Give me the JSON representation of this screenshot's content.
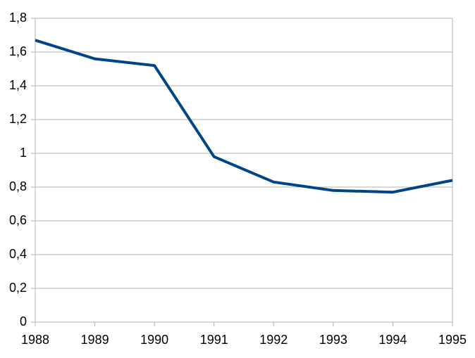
{
  "chart_data": {
    "type": "line",
    "categories": [
      "1988",
      "1989",
      "1990",
      "1991",
      "1992",
      "1993",
      "1994",
      "1995"
    ],
    "series": [
      {
        "color": "#004586",
        "values": [
          1.67,
          1.56,
          1.52,
          0.98,
          0.83,
          0.78,
          0.77,
          0.84
        ]
      }
    ],
    "ylim": [
      0,
      1.8
    ],
    "yticks": [
      0,
      {
        "value": 0.2,
        "label": "0,2"
      },
      {
        "value": 0.4,
        "label": "0,4"
      },
      {
        "value": 0.6,
        "label": "0,6"
      },
      {
        "value": 0.8,
        "label": "0,8"
      },
      1,
      {
        "value": 1.2,
        "label": "1,2"
      },
      {
        "value": 1.4,
        "label": "1,4"
      },
      {
        "value": 1.6,
        "label": "1,6"
      },
      {
        "value": 1.8,
        "label": "1,8"
      }
    ],
    "grid": true
  }
}
